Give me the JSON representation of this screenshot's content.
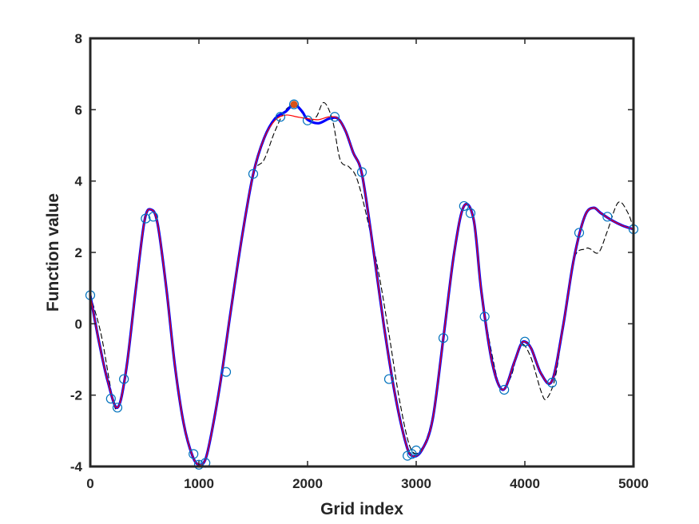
{
  "chart_data": {
    "type": "line",
    "title": "",
    "xlabel": "Grid index",
    "ylabel": "Function value",
    "xlim": [
      0,
      5000
    ],
    "ylim": [
      -4,
      8
    ],
    "xticks": [
      0,
      1000,
      2000,
      3000,
      4000,
      5000
    ],
    "yticks": [
      -4,
      -2,
      0,
      2,
      4,
      6,
      8
    ],
    "grid": false,
    "legend": "none",
    "series": [
      {
        "style": "thin-red-line",
        "color": "#ff0000",
        "x": [
          0,
          80,
          160,
          250,
          330,
          420,
          500,
          560,
          620,
          700,
          780,
          860,
          940,
          1000,
          1060,
          1120,
          1200,
          1300,
          1400,
          1500,
          1600,
          1700,
          1800,
          1900,
          2000,
          2100,
          2200,
          2280,
          2350,
          2420,
          2500,
          2600,
          2700,
          2800,
          2900,
          2960,
          3050,
          3150,
          3250,
          3350,
          3440,
          3530,
          3600,
          3700,
          3800,
          3900,
          3960,
          4000,
          4060,
          4150,
          4250,
          4350,
          4450,
          4550,
          4630,
          4700,
          4800,
          4900,
          5000
        ],
        "y": [
          0.8,
          -0.5,
          -1.6,
          -2.35,
          -1.3,
          1.0,
          2.9,
          3.2,
          2.8,
          1.0,
          -1.2,
          -2.8,
          -3.7,
          -3.95,
          -3.8,
          -3.0,
          -1.6,
          0.5,
          2.5,
          4.2,
          5.2,
          5.7,
          5.85,
          5.8,
          5.75,
          5.72,
          5.8,
          5.75,
          5.4,
          4.8,
          4.2,
          2.2,
          0.0,
          -1.9,
          -3.3,
          -3.7,
          -3.55,
          -2.7,
          -0.4,
          2.0,
          3.3,
          2.9,
          0.9,
          -1.1,
          -1.85,
          -1.1,
          -0.6,
          -0.5,
          -0.7,
          -1.4,
          -1.6,
          -0.1,
          1.8,
          3.0,
          3.25,
          3.1,
          2.9,
          2.75,
          2.65
        ]
      },
      {
        "style": "thick-blue-line",
        "color": "#0000ff",
        "x": [
          0,
          80,
          160,
          250,
          330,
          420,
          500,
          560,
          620,
          700,
          780,
          860,
          940,
          1000,
          1060,
          1120,
          1200,
          1300,
          1400,
          1500,
          1600,
          1700,
          1800,
          1875,
          1950,
          2000,
          2100,
          2200,
          2280,
          2350,
          2420,
          2500,
          2600,
          2700,
          2800,
          2900,
          2960,
          3050,
          3150,
          3250,
          3350,
          3440,
          3530,
          3600,
          3700,
          3800,
          3900,
          3960,
          4000,
          4060,
          4150,
          4250,
          4350,
          4450,
          4550,
          4630,
          4700,
          4800,
          4900,
          5000
        ],
        "y": [
          0.8,
          -0.5,
          -1.6,
          -2.35,
          -1.3,
          1.0,
          2.9,
          3.2,
          2.8,
          1.0,
          -1.2,
          -2.8,
          -3.7,
          -3.95,
          -3.8,
          -3.0,
          -1.6,
          0.5,
          2.5,
          4.2,
          5.2,
          5.75,
          5.95,
          6.15,
          5.95,
          5.72,
          5.62,
          5.75,
          5.75,
          5.4,
          4.8,
          4.2,
          2.2,
          0.0,
          -1.9,
          -3.3,
          -3.7,
          -3.55,
          -2.7,
          -0.4,
          2.0,
          3.3,
          2.9,
          0.9,
          -1.1,
          -1.85,
          -1.1,
          -0.6,
          -0.5,
          -0.7,
          -1.4,
          -1.6,
          -0.1,
          1.8,
          3.0,
          3.25,
          3.1,
          2.9,
          2.75,
          2.65
        ]
      },
      {
        "style": "dashed-black-line",
        "color": "#000000",
        "x": [
          0,
          100,
          200,
          250,
          330,
          420,
          500,
          560,
          620,
          700,
          780,
          860,
          940,
          1000,
          1060,
          1120,
          1200,
          1300,
          1400,
          1500,
          1600,
          1700,
          1800,
          1900,
          2000,
          2080,
          2150,
          2230,
          2300,
          2380,
          2450,
          2530,
          2650,
          2750,
          2850,
          2950,
          3050,
          3150,
          3250,
          3350,
          3440,
          3530,
          3600,
          3700,
          3780,
          3870,
          3960,
          4050,
          4150,
          4200,
          4280,
          4350,
          4450,
          4560,
          4600,
          4680,
          4760,
          4860,
          4950,
          5000
        ],
        "y": [
          0.8,
          -0.3,
          -2.0,
          -2.35,
          -1.3,
          1.0,
          2.9,
          3.2,
          2.8,
          1.0,
          -1.2,
          -2.8,
          -3.7,
          -3.95,
          -3.8,
          -3.0,
          -1.6,
          0.5,
          2.5,
          4.2,
          4.6,
          5.4,
          6.0,
          6.1,
          5.7,
          5.8,
          6.2,
          5.7,
          4.6,
          4.4,
          4.1,
          3.2,
          1.5,
          -0.3,
          -2.2,
          -3.5,
          -3.5,
          -2.6,
          -0.4,
          2.0,
          3.3,
          2.9,
          0.9,
          -0.9,
          -1.8,
          -1.5,
          -0.6,
          -0.9,
          -1.9,
          -2.1,
          -1.5,
          -0.1,
          1.8,
          2.1,
          2.1,
          2.0,
          2.6,
          3.4,
          3.1,
          2.65
        ]
      },
      {
        "style": "open-circle-markers",
        "color": "#0072bd",
        "x": [
          0,
          190,
          250,
          310,
          510,
          580,
          950,
          1000,
          1060,
          1250,
          1500,
          1750,
          1875,
          2000,
          2250,
          2500,
          2750,
          2920,
          2960,
          3000,
          3250,
          3440,
          3500,
          3630,
          3810,
          4000,
          4250,
          4500,
          4760,
          5000
        ],
        "y": [
          0.8,
          -2.1,
          -2.35,
          -1.55,
          2.95,
          3.0,
          -3.65,
          -3.95,
          -3.9,
          -1.35,
          4.2,
          5.8,
          6.15,
          5.7,
          5.8,
          4.25,
          -1.55,
          -3.7,
          -3.65,
          -3.55,
          -0.4,
          3.3,
          3.1,
          0.2,
          -1.85,
          -0.5,
          -1.65,
          2.55,
          3.0,
          2.65
        ]
      },
      {
        "style": "filled-marker",
        "color": "#d95319",
        "x": [
          1875
        ],
        "y": [
          6.15
        ]
      }
    ]
  }
}
